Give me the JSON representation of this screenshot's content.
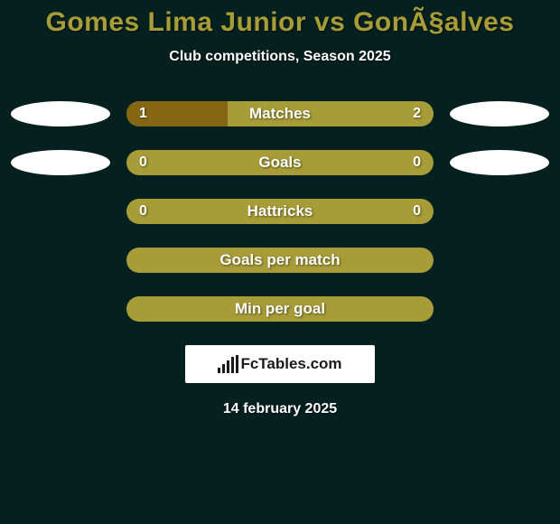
{
  "title": "Gomes Lima Junior vs GonÃ§alves",
  "subtitle": "Club competitions, Season 2025",
  "date": "14 february 2025",
  "logo_text": "FcTables.com",
  "colors": {
    "background": "#042120",
    "title_color": "#a79c37",
    "subtitle_color": "#ffffff",
    "date_color": "#ffffff",
    "oval_left": "#ffffff",
    "oval_right": "#ffffff",
    "bar_track": "#a79c37",
    "bar_fill": "#856614",
    "bar_label_color": "#ffffff",
    "bar_value_color": "#ffffff"
  },
  "rows": [
    {
      "label": "Matches",
      "left_value": "1",
      "right_value": "2",
      "left_fill_pct": 33,
      "right_fill_pct": 0,
      "show_ovals": true,
      "show_values": true
    },
    {
      "label": "Goals",
      "left_value": "0",
      "right_value": "0",
      "left_fill_pct": 0,
      "right_fill_pct": 0,
      "show_ovals": true,
      "show_values": true
    },
    {
      "label": "Hattricks",
      "left_value": "0",
      "right_value": "0",
      "left_fill_pct": 0,
      "right_fill_pct": 0,
      "show_ovals": false,
      "show_values": true
    },
    {
      "label": "Goals per match",
      "left_value": "",
      "right_value": "",
      "left_fill_pct": 0,
      "right_fill_pct": 0,
      "show_ovals": false,
      "show_values": false
    },
    {
      "label": "Min per goal",
      "left_value": "",
      "right_value": "",
      "left_fill_pct": 0,
      "right_fill_pct": 0,
      "show_ovals": false,
      "show_values": false
    }
  ]
}
